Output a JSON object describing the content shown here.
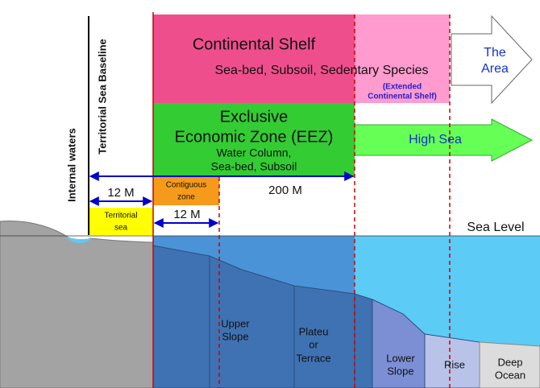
{
  "zones": {
    "continental_shelf": {
      "title": "Continental Shelf",
      "subtitle": "Sea-bed, Subsoil, Sedentary Species"
    },
    "extended_shelf": [
      "(Extended",
      "Continental Shelf)"
    ],
    "the_area": [
      "The",
      "Area"
    ],
    "eez": {
      "title": [
        "Exclusive",
        "Economic Zone (EEZ)"
      ],
      "detail": [
        "Water Column,",
        "Sea-bed, Subsoil"
      ]
    },
    "high_sea": "High Sea",
    "contiguous_zone": [
      "Contiguous",
      "zone"
    ],
    "territorial_sea": [
      "Territorial",
      "sea"
    ]
  },
  "labels": {
    "internal_waters": "Internal waters",
    "baseline": "Territorial Sea Baseline",
    "sea_level": "Sea Level"
  },
  "distances": {
    "territorial": "12 M",
    "eez": "200 M",
    "contiguous": "12 M"
  },
  "seabed": {
    "upper_slope": [
      "Upper",
      "Slope"
    ],
    "plateau": [
      "Plateu",
      "or",
      "Terrace"
    ],
    "lower_slope": [
      "Lower",
      "Slope"
    ],
    "rise": "Rise",
    "deep_ocean": [
      "Deep",
      "Ocean"
    ]
  }
}
